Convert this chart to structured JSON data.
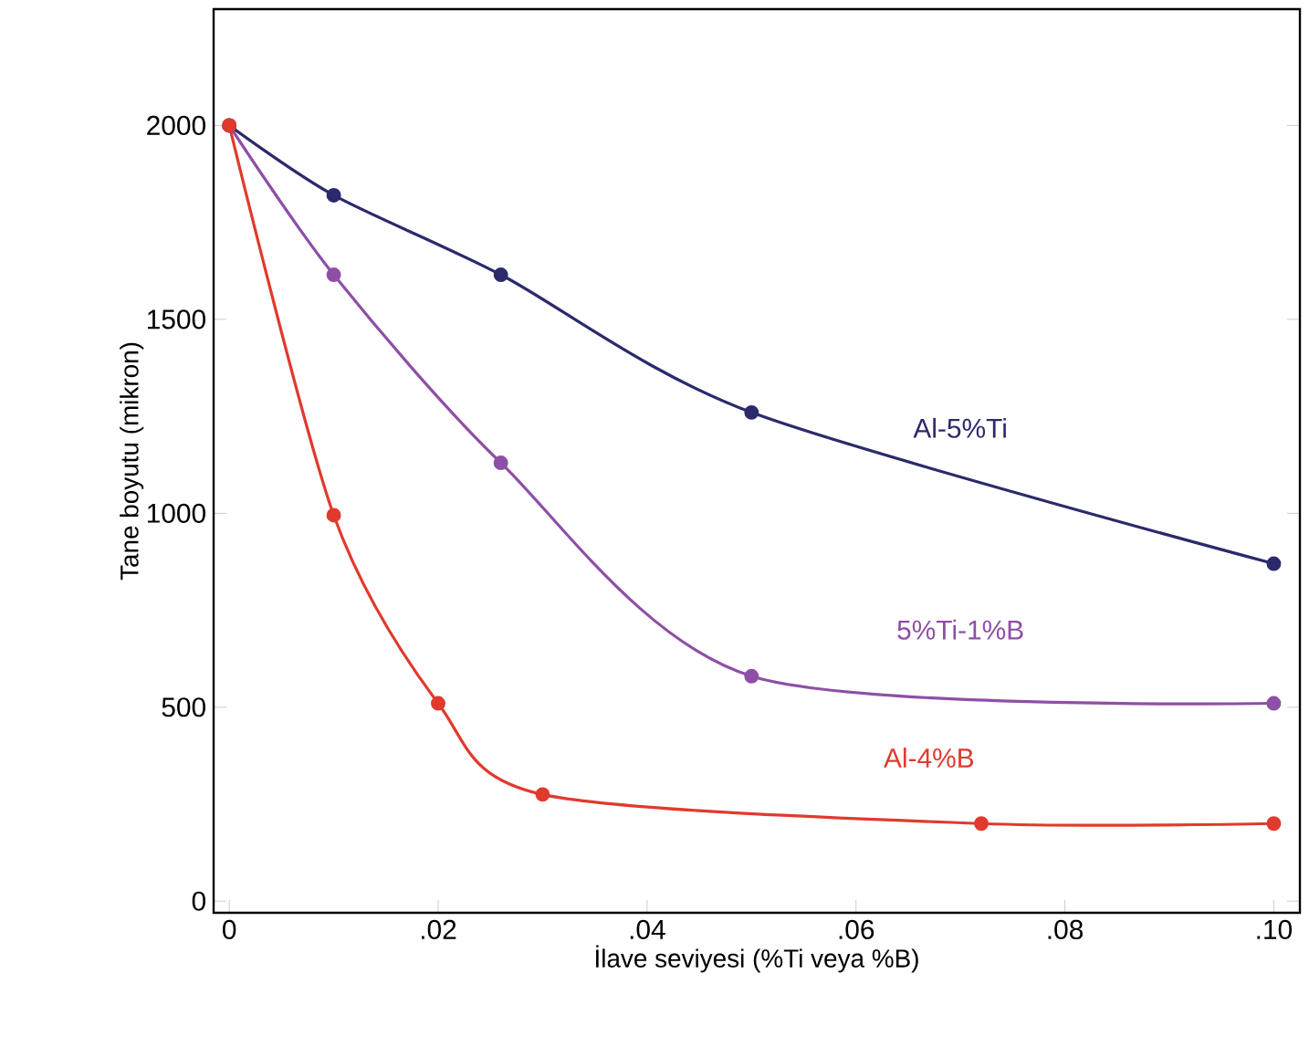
{
  "chart_data": {
    "type": "line",
    "xlabel": "İlave seviyesi (%Ti veya %B)",
    "ylabel": "Tane boyutu (mikron)",
    "xlim": [
      -0.0015,
      0.1025
    ],
    "ylim": [
      -30,
      2300
    ],
    "xticks": [
      {
        "value": 0,
        "label": "0"
      },
      {
        "value": 0.02,
        "label": ".02"
      },
      {
        "value": 0.04,
        "label": ".04"
      },
      {
        "value": 0.06,
        "label": ".06"
      },
      {
        "value": 0.08,
        "label": ".08"
      },
      {
        "value": 0.1,
        "label": ".10"
      }
    ],
    "yticks": [
      0,
      500,
      1000,
      1500,
      2000
    ],
    "marker": "circle",
    "grid": false,
    "series": [
      {
        "name": "Al-5%Ti",
        "color": "#2b2a6b",
        "x": [
          0,
          0.01,
          0.026,
          0.05,
          0.1
        ],
        "values": [
          2000,
          1820,
          1615,
          1260,
          870
        ]
      },
      {
        "name": "5%Ti-1%B",
        "color": "#8e4fa6",
        "x": [
          0,
          0.01,
          0.026,
          0.05,
          0.1
        ],
        "values": [
          2000,
          1615,
          1130,
          580,
          510
        ]
      },
      {
        "name": "Al-4%B",
        "color": "#e03a2e",
        "x": [
          0,
          0.01,
          0.02,
          0.03,
          0.072,
          0.1
        ],
        "values": [
          2000,
          995,
          510,
          275,
          200,
          200
        ]
      }
    ]
  }
}
